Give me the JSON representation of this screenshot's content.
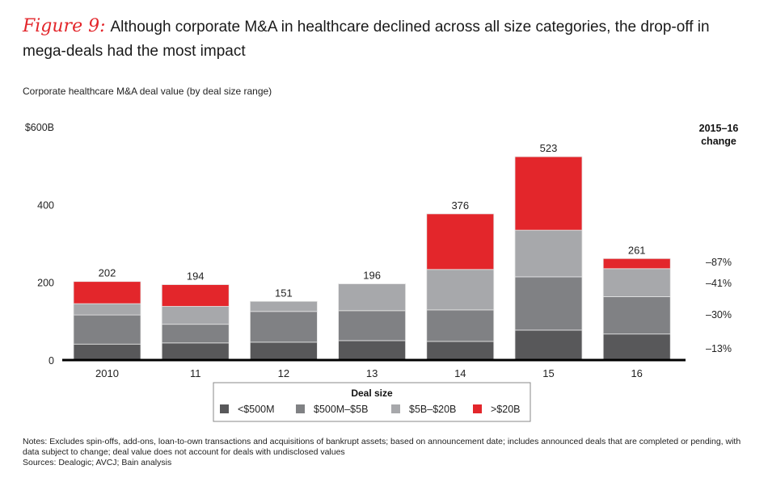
{
  "figure_label": "Figure 9:",
  "title": "Although corporate M&A in healthcare declined across all size categories, the drop-off in mega-deals had the most impact",
  "subtitle": "Corporate healthcare M&A deal value (by deal size range)",
  "change_header": [
    "2015–16",
    "change"
  ],
  "notes": "Notes: Excludes spin-offs, add-ons, loan-to-own transactions and acquisitions of bankrupt assets; based on announcement date; includes announced deals that are completed or pending, with data subject to change; deal value does not account for deals with undisclosed values",
  "sources": "Sources: Dealogic; AVCJ; Bain analysis",
  "chart_data": {
    "type": "bar",
    "stacked": true,
    "title": "Corporate healthcare M&A deal value (by deal size range)",
    "xlabel": "",
    "ylabel": "",
    "ylim": [
      0,
      600
    ],
    "y_ticks": [
      0,
      200,
      400,
      600
    ],
    "y_tick_labels": [
      "0",
      "200",
      "400",
      "$600B"
    ],
    "categories": [
      "2010",
      "11",
      "12",
      "13",
      "14",
      "15",
      "16"
    ],
    "totals": [
      202,
      194,
      151,
      196,
      376,
      523,
      261
    ],
    "series": [
      {
        "name": "<$500M",
        "color": "#58585a",
        "values": [
          41,
          44,
          46,
          50,
          48,
          77,
          67
        ]
      },
      {
        "name": "$500M–$5B",
        "color": "#808184",
        "values": [
          75,
          48,
          79,
          77,
          81,
          137,
          96
        ]
      },
      {
        "name": "$5B–$20B",
        "color": "#a7a8ab",
        "values": [
          29,
          46,
          26,
          69,
          104,
          120,
          72
        ]
      },
      {
        "name": ">$20B",
        "color": "#e3262b",
        "values": [
          57,
          56,
          0,
          0,
          143,
          189,
          26
        ]
      }
    ],
    "legend_title": "Deal size",
    "legend_position": "bottom",
    "change_2015_16": [
      {
        "series": ">$20B",
        "label": "–87%"
      },
      {
        "series": "$5B–$20B",
        "label": "–41%"
      },
      {
        "series": "$500M–$5B",
        "label": "–30%"
      },
      {
        "series": "<$500M",
        "label": "–13%"
      }
    ],
    "grid": false
  }
}
